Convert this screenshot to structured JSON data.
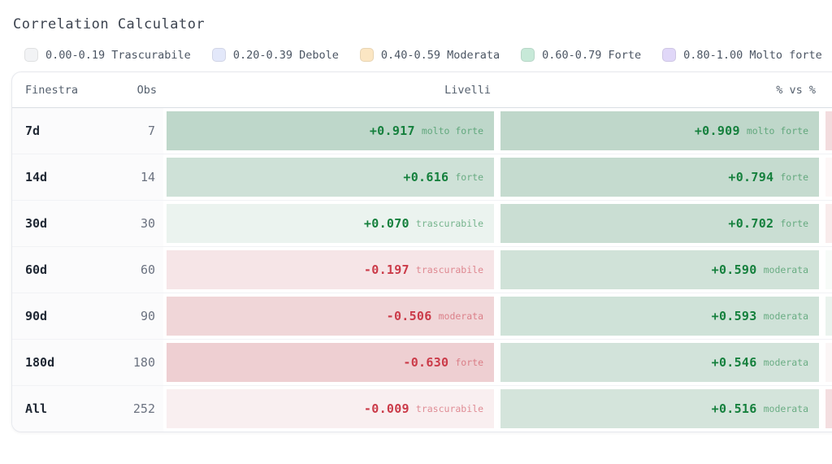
{
  "title": "Correlation Calculator",
  "legend": [
    {
      "range": "0.00-0.19",
      "strength": "Trascurabile",
      "swatch": "#f2f3f5"
    },
    {
      "range": "0.20-0.39",
      "strength": "Debole",
      "swatch": "#e3e8fa"
    },
    {
      "range": "0.40-0.59",
      "strength": "Moderata",
      "swatch": "#fbe6c3"
    },
    {
      "range": "0.60-0.79",
      "strength": "Forte",
      "swatch": "#c7e9d8"
    },
    {
      "range": "0.80-1.00",
      "strength": "Molto forte",
      "swatch": "#e0d7f8"
    }
  ],
  "table": {
    "columns": [
      "Finestra",
      "Obs",
      "Livelli",
      "% vs %"
    ],
    "rows": [
      {
        "window": "7d",
        "obs": "7",
        "livelli": {
          "value": "+0.917",
          "num": 0.917,
          "label": "molto forte"
        },
        "pct": {
          "value": "+0.909",
          "num": 0.909,
          "label": "molto forte"
        },
        "clipped_bar_color": "#f3dcde"
      },
      {
        "window": "14d",
        "obs": "14",
        "livelli": {
          "value": "+0.616",
          "num": 0.616,
          "label": "forte"
        },
        "pct": {
          "value": "+0.794",
          "num": 0.794,
          "label": "forte"
        },
        "clipped_bar_color": "#fdf7f7"
      },
      {
        "window": "30d",
        "obs": "30",
        "livelli": {
          "value": "+0.070",
          "num": 0.07,
          "label": "trascurabile"
        },
        "pct": {
          "value": "+0.702",
          "num": 0.702,
          "label": "forte"
        },
        "clipped_bar_color": "#f9ecec"
      },
      {
        "window": "60d",
        "obs": "60",
        "livelli": {
          "value": "-0.197",
          "num": -0.197,
          "label": "trascurabile"
        },
        "pct": {
          "value": "+0.590",
          "num": 0.59,
          "label": "moderata"
        },
        "clipped_bar_color": "#f7fbf8"
      },
      {
        "window": "90d",
        "obs": "90",
        "livelli": {
          "value": "-0.506",
          "num": -0.506,
          "label": "moderata"
        },
        "pct": {
          "value": "+0.593",
          "num": 0.593,
          "label": "moderata"
        },
        "clipped_bar_color": "#eaf3ee"
      },
      {
        "window": "180d",
        "obs": "180",
        "livelli": {
          "value": "-0.630",
          "num": -0.63,
          "label": "forte"
        },
        "pct": {
          "value": "+0.546",
          "num": 0.546,
          "label": "moderata"
        },
        "clipped_bar_color": "#fbf6f6"
      },
      {
        "window": "All",
        "obs": "252",
        "livelli": {
          "value": "-0.009",
          "num": -0.009,
          "label": "trascurabile"
        },
        "pct": {
          "value": "+0.516",
          "num": 0.516,
          "label": "moderata"
        },
        "clipped_bar_color": "#f4dee0"
      }
    ]
  },
  "colors": {
    "positive_text": "#15803d",
    "negative_text": "#cb3b49",
    "positive_bar_base_rgb": "52,130,87",
    "negative_bar_base_rgb": "186,60,69"
  }
}
